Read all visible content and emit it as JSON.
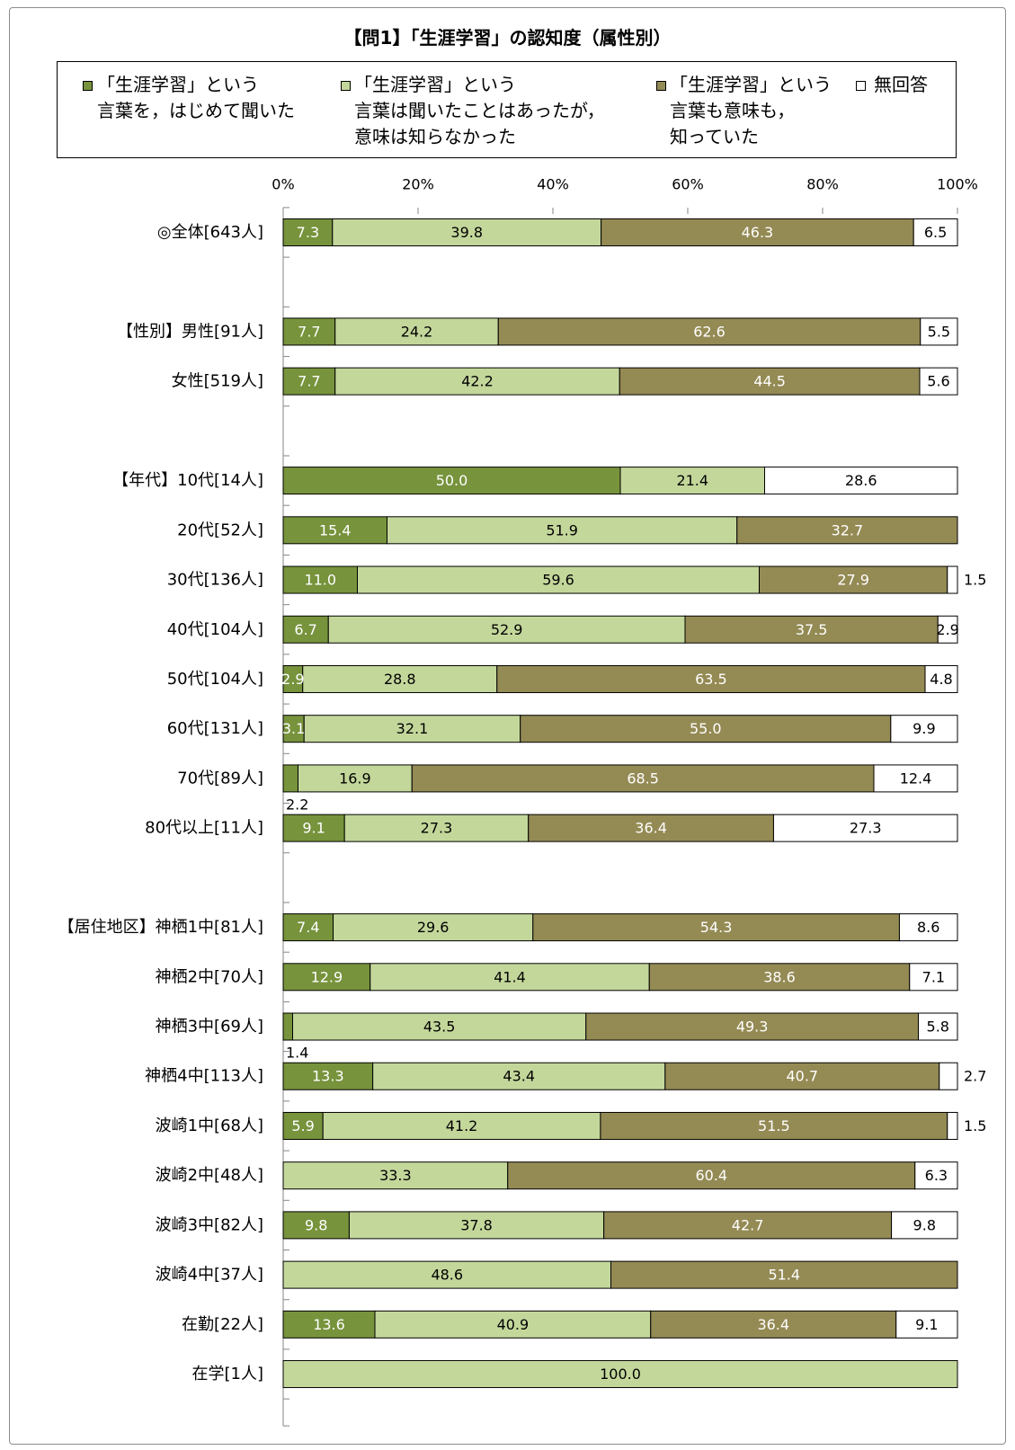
{
  "chart_data": {
    "type": "bar",
    "orientation": "horizontal",
    "stacking": "100%",
    "title": "【問1】「生涯学習」の認知度（属性別）",
    "xlim": [
      0,
      100
    ],
    "x_tick_labels": [
      "0%",
      "20%",
      "40%",
      "60%",
      "80%",
      "100%"
    ],
    "legend_position": "top",
    "grid": false,
    "categories": [
      "◎全体[643人]",
      "【性別】男性[91人]",
      "女性[519人]",
      "【年代】10代[14人]",
      "20代[52人]",
      "30代[136人]",
      "40代[104人]",
      "50代[104人]",
      "60代[131人]",
      "70代[89人]",
      "80代以上[11人]",
      "【居住地区】神栖1中[81人]",
      "神栖2中[70人]",
      "神栖3中[69人]",
      "神栖4中[113人]",
      "波崎1中[68人]",
      "波崎2中[48人]",
      "波崎3中[82人]",
      "波崎4中[37人]",
      "在勤[22人]",
      "在学[1人]"
    ],
    "series": [
      {
        "name": "「生涯学習」という\n言葉を，はじめて聞いた",
        "color": "#77933C",
        "label_color": "#FFFFFF",
        "values": [
          7.3,
          7.7,
          7.7,
          50.0,
          15.4,
          11.0,
          6.7,
          2.9,
          3.1,
          2.2,
          9.1,
          7.4,
          12.9,
          1.4,
          13.3,
          5.9,
          null,
          9.8,
          null,
          13.6,
          null
        ]
      },
      {
        "name": "「生涯学習」という\n言葉は聞いたことはあったが，\n意味は知らなかった",
        "color": "#C4D79B",
        "label_color": "#000000",
        "values": [
          39.8,
          24.2,
          42.2,
          21.4,
          51.9,
          59.6,
          52.9,
          28.8,
          32.1,
          16.9,
          27.3,
          29.6,
          41.4,
          43.5,
          43.4,
          41.2,
          33.3,
          37.8,
          48.6,
          40.9,
          100.0
        ]
      },
      {
        "name": "「生涯学習」という\n言葉も意味も，\n知っていた",
        "color": "#948A54",
        "label_color": "#FFFFFF",
        "values": [
          46.3,
          62.6,
          44.5,
          null,
          32.7,
          27.9,
          37.5,
          63.5,
          55.0,
          68.5,
          36.4,
          54.3,
          38.6,
          49.3,
          40.7,
          51.5,
          60.4,
          42.7,
          51.4,
          36.4,
          null
        ]
      },
      {
        "name": "無回答",
        "color": "#FFFFFF",
        "label_color": "#000000",
        "values": [
          6.5,
          5.5,
          5.6,
          28.6,
          null,
          1.5,
          2.9,
          4.8,
          9.9,
          12.4,
          27.3,
          8.6,
          7.1,
          5.8,
          2.7,
          1.5,
          6.3,
          9.8,
          null,
          9.1,
          null
        ]
      }
    ]
  }
}
